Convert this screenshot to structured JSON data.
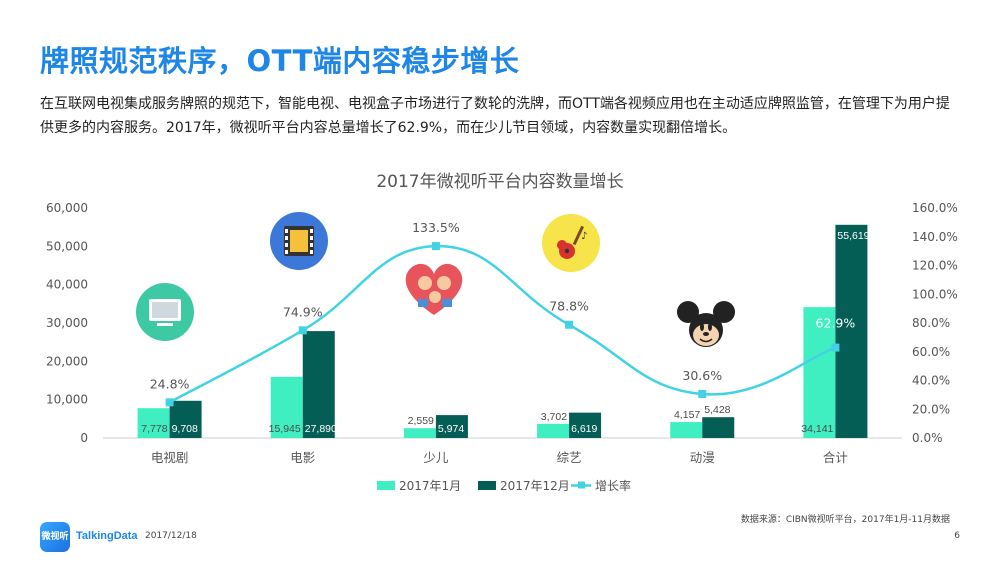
{
  "header": {
    "title": "牌照规范秩序，OTT端内容稳步增长",
    "intro": "在互联网电视集成服务牌照的规范下，智能电视、电视盒子市场进行了数轮的洗牌，而OTT端各视频应用也在主动适应牌照监管，在管理下为用户提供更多的内容服务。2017年，微视听平台内容总量增长了62.9%，而在少儿节目领域，内容数量实现翻倍增长。"
  },
  "chart_data": {
    "type": "bar",
    "title": "2017年微视听平台内容数量增长",
    "categories": [
      "电视剧",
      "电影",
      "少儿",
      "综艺",
      "动漫",
      "合计"
    ],
    "series": [
      {
        "name": "2017年1月",
        "kind": "bar",
        "axis": "left",
        "color": "#3fefc2",
        "values": [
          7778,
          15945,
          2559,
          3702,
          4157,
          34141
        ],
        "labels": [
          "7,778",
          "15,945",
          "2,559",
          "3,702",
          "4,157",
          "34,141"
        ]
      },
      {
        "name": "2017年12月",
        "kind": "bar",
        "axis": "left",
        "color": "#045e55",
        "values": [
          9708,
          27890,
          5974,
          6619,
          5428,
          55619
        ],
        "labels": [
          "9,708",
          "27,890",
          "5,974",
          "6,619",
          "5,428",
          "55,619"
        ]
      },
      {
        "name": "增长率",
        "kind": "line",
        "axis": "right",
        "color": "#41d2e4",
        "values": [
          24.8,
          74.9,
          133.5,
          78.8,
          30.6,
          62.9
        ],
        "labels": [
          "24.8%",
          "74.9%",
          "133.5%",
          "78.8%",
          "30.6%",
          "62.9%"
        ]
      }
    ],
    "left_axis": {
      "range": [
        0,
        60000
      ],
      "ticks": [
        "0",
        "10,000",
        "20,000",
        "30,000",
        "40,000",
        "50,000",
        "60,000"
      ]
    },
    "right_axis": {
      "range": [
        0,
        160
      ],
      "ticks": [
        "0.0%",
        "20.0%",
        "40.0%",
        "60.0%",
        "80.0%",
        "100.0%",
        "120.0%",
        "140.0%",
        "160.0%"
      ]
    },
    "legend_position": "bottom",
    "grid": false,
    "icons": [
      "tv-icon",
      "film-icon",
      "family-heart-icon",
      "guitar-icon",
      "mickey-icon"
    ]
  },
  "footer": {
    "logo_text": "微视听",
    "brand": "TalkingData",
    "date": "2017/12/18",
    "source": "数据来源：CIBN微视听平台，2017年1月-11月数据",
    "page": "6"
  }
}
